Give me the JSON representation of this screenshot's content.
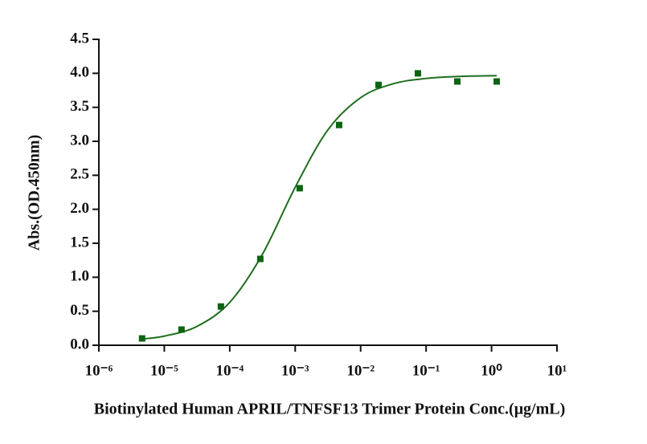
{
  "chart_data": {
    "type": "scatter",
    "x_label": "Biotinylated Human APRIL/TNFSF13 Trimer Protein Conc.(μg/mL)",
    "y_label": "Abs.(OD.450nm)",
    "x_scale": "log",
    "color": "#0b6410",
    "x": [
      4.5776e-06,
      1.8311e-05,
      7.3242e-05,
      0.00029297,
      0.0011719,
      0.0046875,
      0.01875,
      0.075,
      0.3,
      1.2
    ],
    "values": [
      0.1,
      0.23,
      0.57,
      1.27,
      2.31,
      3.24,
      3.83,
      4.0,
      3.88,
      3.88
    ],
    "fit": {
      "color": "#1f6e1f",
      "x": [
        4.47e-06,
        1e-05,
        3.16e-05,
        0.0001,
        0.000316,
        0.001,
        0.00316,
        0.01,
        0.0316,
        0.1,
        0.316,
        1.2
      ],
      "values": [
        0.091,
        0.134,
        0.278,
        0.631,
        1.339,
        2.324,
        3.169,
        3.642,
        3.847,
        3.925,
        3.954,
        3.965
      ]
    },
    "xlim": [
      1e-06,
      10
    ],
    "ylim": [
      0,
      4.5
    ],
    "xticks": [
      {
        "value": 1e-06,
        "label": "10⁻⁶"
      },
      {
        "value": 1e-05,
        "label": "10⁻⁵"
      },
      {
        "value": 0.0001,
        "label": "10⁻⁴"
      },
      {
        "value": 0.001,
        "label": "10⁻³"
      },
      {
        "value": 0.01,
        "label": "10⁻²"
      },
      {
        "value": 0.1,
        "label": "10⁻¹"
      },
      {
        "value": 1,
        "label": "10⁰"
      },
      {
        "value": 10,
        "label": "10¹"
      }
    ],
    "yticks": [
      {
        "value": 0,
        "label": "0.0"
      },
      {
        "value": 0.5,
        "label": "0.5"
      },
      {
        "value": 1,
        "label": "1.0"
      },
      {
        "value": 1.5,
        "label": "1.5"
      },
      {
        "value": 2,
        "label": "2.0"
      },
      {
        "value": 2.5,
        "label": "2.5"
      },
      {
        "value": 3,
        "label": "3.0"
      },
      {
        "value": 3.5,
        "label": "3.5"
      },
      {
        "value": 4,
        "label": "4.0"
      },
      {
        "value": 4.5,
        "label": "4.5"
      }
    ]
  }
}
